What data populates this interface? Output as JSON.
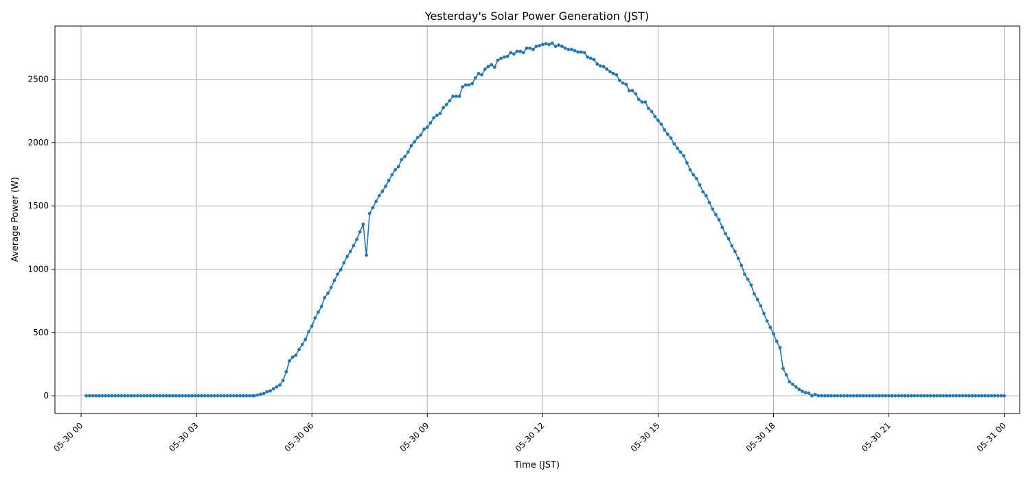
{
  "chart_data": {
    "type": "line",
    "title": "Yesterday's Solar Power Generation (JST)",
    "xlabel": "Time (JST)",
    "ylabel": "Average Power (W)",
    "x_unit": "hours after 05-30 00:00",
    "xlim": [
      -0.68,
      24.4
    ],
    "ylim": [
      -140,
      2920
    ],
    "xticks": [
      0,
      3,
      6,
      9,
      12,
      15,
      18,
      21,
      24
    ],
    "xtick_labels": [
      "05-30 00",
      "05-30 03",
      "05-30 06",
      "05-30 09",
      "05-30 12",
      "05-30 15",
      "05-30 18",
      "05-30 21",
      "05-31 00"
    ],
    "yticks": [
      0,
      500,
      1000,
      1500,
      2000,
      2500
    ],
    "grid": true,
    "color": "#1f77b4",
    "series": [
      {
        "name": "",
        "points": [
          [
            0.1333,
            0
          ],
          [
            4.5,
            0
          ],
          [
            4.583,
            5
          ],
          [
            4.667,
            12
          ],
          [
            4.75,
            18
          ],
          [
            4.833,
            32
          ],
          [
            4.917,
            38
          ],
          [
            5.0,
            55
          ],
          [
            5.083,
            70
          ],
          [
            5.167,
            85
          ],
          [
            5.25,
            120
          ],
          [
            5.333,
            190
          ],
          [
            5.417,
            275
          ],
          [
            5.5,
            305
          ],
          [
            5.583,
            320
          ],
          [
            5.667,
            365
          ],
          [
            5.75,
            405
          ],
          [
            5.833,
            445
          ],
          [
            5.917,
            505
          ],
          [
            6.0,
            550
          ],
          [
            6.083,
            615
          ],
          [
            6.167,
            660
          ],
          [
            6.25,
            705
          ],
          [
            6.333,
            775
          ],
          [
            6.417,
            810
          ],
          [
            6.5,
            855
          ],
          [
            6.583,
            910
          ],
          [
            6.667,
            960
          ],
          [
            6.75,
            995
          ],
          [
            6.833,
            1050
          ],
          [
            6.917,
            1100
          ],
          [
            7.0,
            1140
          ],
          [
            7.083,
            1185
          ],
          [
            7.167,
            1235
          ],
          [
            7.25,
            1295
          ],
          [
            7.333,
            1355
          ],
          [
            7.417,
            1110
          ],
          [
            7.5,
            1440
          ],
          [
            7.583,
            1485
          ],
          [
            7.667,
            1535
          ],
          [
            7.75,
            1580
          ],
          [
            7.833,
            1615
          ],
          [
            7.917,
            1655
          ],
          [
            8.0,
            1700
          ],
          [
            8.083,
            1745
          ],
          [
            8.167,
            1785
          ],
          [
            8.25,
            1810
          ],
          [
            8.333,
            1865
          ],
          [
            8.417,
            1890
          ],
          [
            8.5,
            1925
          ],
          [
            8.583,
            1975
          ],
          [
            8.667,
            2005
          ],
          [
            8.75,
            2040
          ],
          [
            8.833,
            2060
          ],
          [
            8.917,
            2105
          ],
          [
            9.0,
            2120
          ],
          [
            9.083,
            2155
          ],
          [
            9.167,
            2195
          ],
          [
            9.25,
            2215
          ],
          [
            9.333,
            2230
          ],
          [
            9.417,
            2275
          ],
          [
            9.5,
            2300
          ],
          [
            9.583,
            2330
          ],
          [
            9.667,
            2365
          ],
          [
            9.75,
            2365
          ],
          [
            9.833,
            2365
          ],
          [
            9.917,
            2440
          ],
          [
            10.0,
            2455
          ],
          [
            10.083,
            2455
          ],
          [
            10.167,
            2465
          ],
          [
            10.25,
            2510
          ],
          [
            10.333,
            2545
          ],
          [
            10.417,
            2535
          ],
          [
            10.5,
            2580
          ],
          [
            10.583,
            2600
          ],
          [
            10.667,
            2615
          ],
          [
            10.75,
            2595
          ],
          [
            10.833,
            2650
          ],
          [
            10.917,
            2665
          ],
          [
            11.0,
            2675
          ],
          [
            11.083,
            2680
          ],
          [
            11.167,
            2710
          ],
          [
            11.25,
            2700
          ],
          [
            11.333,
            2720
          ],
          [
            11.417,
            2720
          ],
          [
            11.5,
            2710
          ],
          [
            11.583,
            2745
          ],
          [
            11.667,
            2745
          ],
          [
            11.75,
            2735
          ],
          [
            11.833,
            2760
          ],
          [
            11.917,
            2765
          ],
          [
            12.0,
            2775
          ],
          [
            12.083,
            2780
          ],
          [
            12.167,
            2775
          ],
          [
            12.25,
            2785
          ],
          [
            12.333,
            2760
          ],
          [
            12.417,
            2770
          ],
          [
            12.5,
            2760
          ],
          [
            12.583,
            2745
          ],
          [
            12.667,
            2735
          ],
          [
            12.75,
            2735
          ],
          [
            12.833,
            2725
          ],
          [
            12.917,
            2715
          ],
          [
            13.0,
            2715
          ],
          [
            13.083,
            2710
          ],
          [
            13.167,
            2675
          ],
          [
            13.25,
            2665
          ],
          [
            13.333,
            2655
          ],
          [
            13.417,
            2620
          ],
          [
            13.5,
            2605
          ],
          [
            13.583,
            2600
          ],
          [
            13.667,
            2580
          ],
          [
            13.75,
            2560
          ],
          [
            13.833,
            2545
          ],
          [
            13.917,
            2535
          ],
          [
            14.0,
            2490
          ],
          [
            14.083,
            2470
          ],
          [
            14.167,
            2460
          ],
          [
            14.25,
            2410
          ],
          [
            14.333,
            2410
          ],
          [
            14.417,
            2385
          ],
          [
            14.5,
            2340
          ],
          [
            14.583,
            2320
          ],
          [
            14.667,
            2320
          ],
          [
            14.75,
            2270
          ],
          [
            14.833,
            2245
          ],
          [
            14.917,
            2205
          ],
          [
            15.0,
            2175
          ],
          [
            15.083,
            2145
          ],
          [
            15.167,
            2100
          ],
          [
            15.25,
            2065
          ],
          [
            15.333,
            2035
          ],
          [
            15.417,
            1990
          ],
          [
            15.5,
            1955
          ],
          [
            15.583,
            1925
          ],
          [
            15.667,
            1895
          ],
          [
            15.75,
            1840
          ],
          [
            15.833,
            1785
          ],
          [
            15.917,
            1745
          ],
          [
            16.0,
            1715
          ],
          [
            16.083,
            1665
          ],
          [
            16.167,
            1610
          ],
          [
            16.25,
            1580
          ],
          [
            16.333,
            1525
          ],
          [
            16.417,
            1475
          ],
          [
            16.5,
            1430
          ],
          [
            16.583,
            1390
          ],
          [
            16.667,
            1330
          ],
          [
            16.75,
            1280
          ],
          [
            16.833,
            1240
          ],
          [
            16.917,
            1185
          ],
          [
            17.0,
            1140
          ],
          [
            17.083,
            1085
          ],
          [
            17.167,
            1030
          ],
          [
            17.25,
            960
          ],
          [
            17.333,
            920
          ],
          [
            17.417,
            875
          ],
          [
            17.5,
            805
          ],
          [
            17.583,
            760
          ],
          [
            17.667,
            710
          ],
          [
            17.75,
            650
          ],
          [
            17.833,
            590
          ],
          [
            17.917,
            540
          ],
          [
            18.0,
            490
          ],
          [
            18.083,
            430
          ],
          [
            18.167,
            380
          ],
          [
            18.25,
            215
          ],
          [
            18.333,
            165
          ],
          [
            18.417,
            110
          ],
          [
            18.5,
            90
          ],
          [
            18.583,
            70
          ],
          [
            18.667,
            50
          ],
          [
            18.75,
            35
          ],
          [
            18.833,
            25
          ],
          [
            18.917,
            20
          ],
          [
            19.0,
            0
          ],
          [
            19.083,
            10
          ],
          [
            19.167,
            0
          ],
          [
            24.0,
            0
          ]
        ]
      }
    ]
  }
}
